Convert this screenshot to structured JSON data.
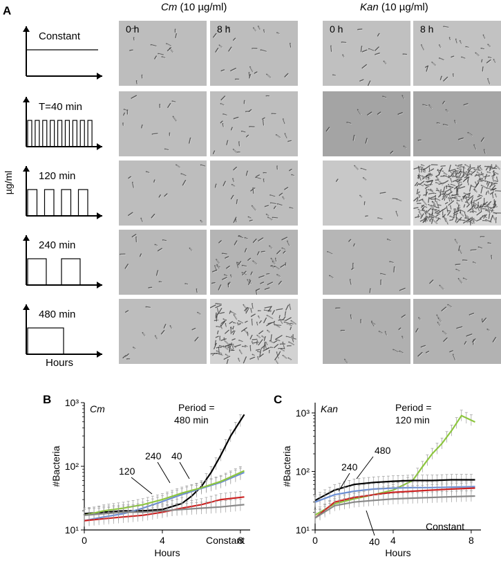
{
  "panel_a": {
    "letter": "A",
    "y_unit_label": "µg/ml",
    "x_label": "Hours",
    "drug_headers": [
      {
        "drug": "Cm",
        "conc": "(10 µg/ml)"
      },
      {
        "drug": "Kan",
        "conc": "(10 µg/ml)"
      }
    ],
    "time_labels": [
      "0 h",
      "8 h"
    ],
    "schedules": [
      {
        "label": "Constant",
        "pulses": 0
      },
      {
        "label": "T=40 min",
        "pulses": 9
      },
      {
        "label": "120 min",
        "pulses": 4
      },
      {
        "label": "240 min",
        "pulses": 2
      },
      {
        "label": "480 min",
        "pulses": 1
      }
    ],
    "colors": {
      "micro_bg": "#b9b9b9",
      "micro_dark": "#9e9e9e"
    }
  },
  "chart_data": [
    {
      "panel": "B",
      "type": "line",
      "drug": "Cm",
      "ylabel": "#Bacteria",
      "xlabel": "Hours",
      "yscale": "log",
      "ylim": [
        10,
        1000
      ],
      "xlim": [
        0,
        8.5
      ],
      "xticks": [
        "0",
        "4",
        "8"
      ],
      "yticks": [
        "10¹",
        "10²",
        "10³"
      ],
      "annotations": [
        "Period =",
        "480 min",
        "240",
        "40",
        "120",
        "Constant"
      ],
      "series": [
        {
          "name": "480",
          "color": "#000000",
          "x": [
            0,
            1,
            2,
            3,
            4,
            5,
            5.5,
            6,
            6.5,
            7,
            7.5,
            8.2
          ],
          "values": [
            18,
            19,
            20,
            20,
            21,
            26,
            34,
            48,
            80,
            150,
            300,
            650
          ]
        },
        {
          "name": "240",
          "color": "#6b8fd6",
          "x": [
            0,
            1,
            2,
            3,
            4,
            5,
            6,
            7,
            8.2
          ],
          "values": [
            14,
            16,
            18,
            22,
            28,
            36,
            45,
            56,
            80
          ]
        },
        {
          "name": "120",
          "color": "#8dc63f",
          "x": [
            0,
            1,
            2,
            3,
            4,
            5,
            6,
            7,
            8.2
          ],
          "values": [
            17,
            20,
            22,
            25,
            30,
            38,
            46,
            58,
            85
          ]
        },
        {
          "name": "40",
          "color": "#cc2222",
          "x": [
            0,
            1,
            2,
            3,
            4,
            5,
            6,
            7,
            8.2
          ],
          "values": [
            14,
            15,
            16,
            17,
            19,
            22,
            25,
            30,
            33
          ]
        },
        {
          "name": "Constant",
          "color": "#888888",
          "x": [
            0,
            1,
            2,
            3,
            4,
            5,
            6,
            7,
            8.2
          ],
          "values": [
            17,
            18,
            19,
            19,
            20,
            21,
            22,
            23,
            25
          ]
        }
      ]
    },
    {
      "panel": "C",
      "type": "line",
      "drug": "Kan",
      "ylabel": "#Bacteria",
      "xlabel": "Hours",
      "yscale": "log",
      "ylim": [
        10,
        1500
      ],
      "xlim": [
        0,
        8.5
      ],
      "xticks": [
        "0",
        "4",
        "8"
      ],
      "yticks": [
        "10¹",
        "10²",
        "10³"
      ],
      "annotations": [
        "Period =",
        "120 min",
        "480",
        "240",
        "40",
        "Constant"
      ],
      "series": [
        {
          "name": "120",
          "color": "#8dc63f",
          "x": [
            0,
            1,
            2,
            3,
            4,
            5,
            5.5,
            6,
            6.5,
            7,
            7.5,
            8.2
          ],
          "values": [
            18,
            28,
            34,
            40,
            48,
            70,
            120,
            200,
            300,
            500,
            900,
            700
          ]
        },
        {
          "name": "480",
          "color": "#000000",
          "x": [
            0,
            1,
            2,
            3,
            4,
            5,
            6,
            7,
            8.2
          ],
          "values": [
            32,
            48,
            60,
            65,
            68,
            70,
            70,
            72,
            72
          ]
        },
        {
          "name": "240",
          "color": "#6b8fd6",
          "x": [
            0,
            1,
            2,
            3,
            4,
            5,
            6,
            7,
            8.2
          ],
          "values": [
            30,
            40,
            46,
            50,
            52,
            53,
            53,
            54,
            55
          ]
        },
        {
          "name": "40",
          "color": "#cc2222",
          "x": [
            0,
            1,
            2,
            3,
            4,
            5,
            6,
            7,
            8.2
          ],
          "values": [
            16,
            30,
            36,
            40,
            44,
            46,
            48,
            50,
            52
          ]
        },
        {
          "name": "Constant",
          "color": "#888888",
          "x": [
            0,
            1,
            2,
            3,
            4,
            5,
            6,
            7,
            8.2
          ],
          "values": [
            16,
            26,
            30,
            32,
            34,
            35,
            36,
            37,
            38
          ]
        }
      ]
    }
  ],
  "panel_b_letter": "B",
  "panel_c_letter": "C"
}
